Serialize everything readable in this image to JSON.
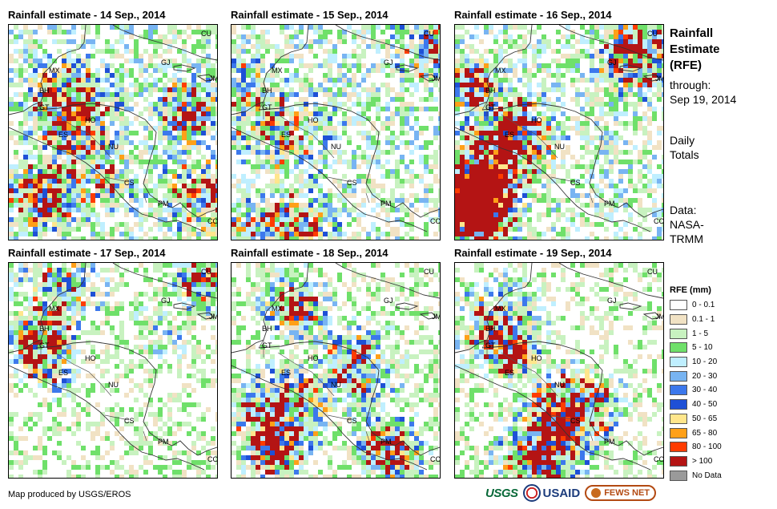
{
  "panels": [
    {
      "title": "Rainfall estimate - 14 Sep., 2014",
      "seed": 14
    },
    {
      "title": "Rainfall estimate - 15 Sep., 2014",
      "seed": 15
    },
    {
      "title": "Rainfall estimate - 16 Sep., 2014",
      "seed": 16
    },
    {
      "title": "Rainfall estimate - 17 Sep., 2014",
      "seed": 17
    },
    {
      "title": "Rainfall estimate - 18 Sep., 2014",
      "seed": 18
    },
    {
      "title": "Rainfall estimate - 19 Sep., 2014",
      "seed": 19
    }
  ],
  "country_labels": [
    "CU",
    "MX",
    "GJ",
    "JM",
    "BH",
    "GT",
    "HO",
    "ES",
    "NU",
    "CS",
    "PM",
    "CO"
  ],
  "side": {
    "title_line1": "Rainfall",
    "title_line2": "Estimate",
    "title_line3": "(RFE)",
    "through_label": "through:",
    "through_date": "Sep 19, 2014",
    "daily_line1": "Daily",
    "daily_line2": "Totals",
    "data_line1": "Data:",
    "data_line2": "NASA-",
    "data_line3": "TRMM"
  },
  "legend": {
    "title": "RFE (mm)",
    "items": [
      {
        "label": "0 - 0.1",
        "color": "#ffffff"
      },
      {
        "label": "0.1 - 1",
        "color": "#f1e2c4"
      },
      {
        "label": "1 - 5",
        "color": "#c8f2c0"
      },
      {
        "label": "5 - 10",
        "color": "#6fe06a"
      },
      {
        "label": "10 - 20",
        "color": "#bfefff"
      },
      {
        "label": "20 - 30",
        "color": "#78b4f2"
      },
      {
        "label": "30 - 40",
        "color": "#3c78ec"
      },
      {
        "label": "40 - 50",
        "color": "#1e50d6"
      },
      {
        "label": "50 - 65",
        "color": "#ffe68c"
      },
      {
        "label": "65 - 80",
        "color": "#ffa018"
      },
      {
        "label": "80 - 100",
        "color": "#ff3c00"
      },
      {
        "label": "> 100",
        "color": "#b41414"
      },
      {
        "label": "No Data",
        "color": "#9a9a9a"
      }
    ]
  },
  "footer": "Map produced by USGS/EROS",
  "logos": {
    "usgs": "USGS",
    "usaid": "USAID",
    "fews": "FEWS NET"
  }
}
